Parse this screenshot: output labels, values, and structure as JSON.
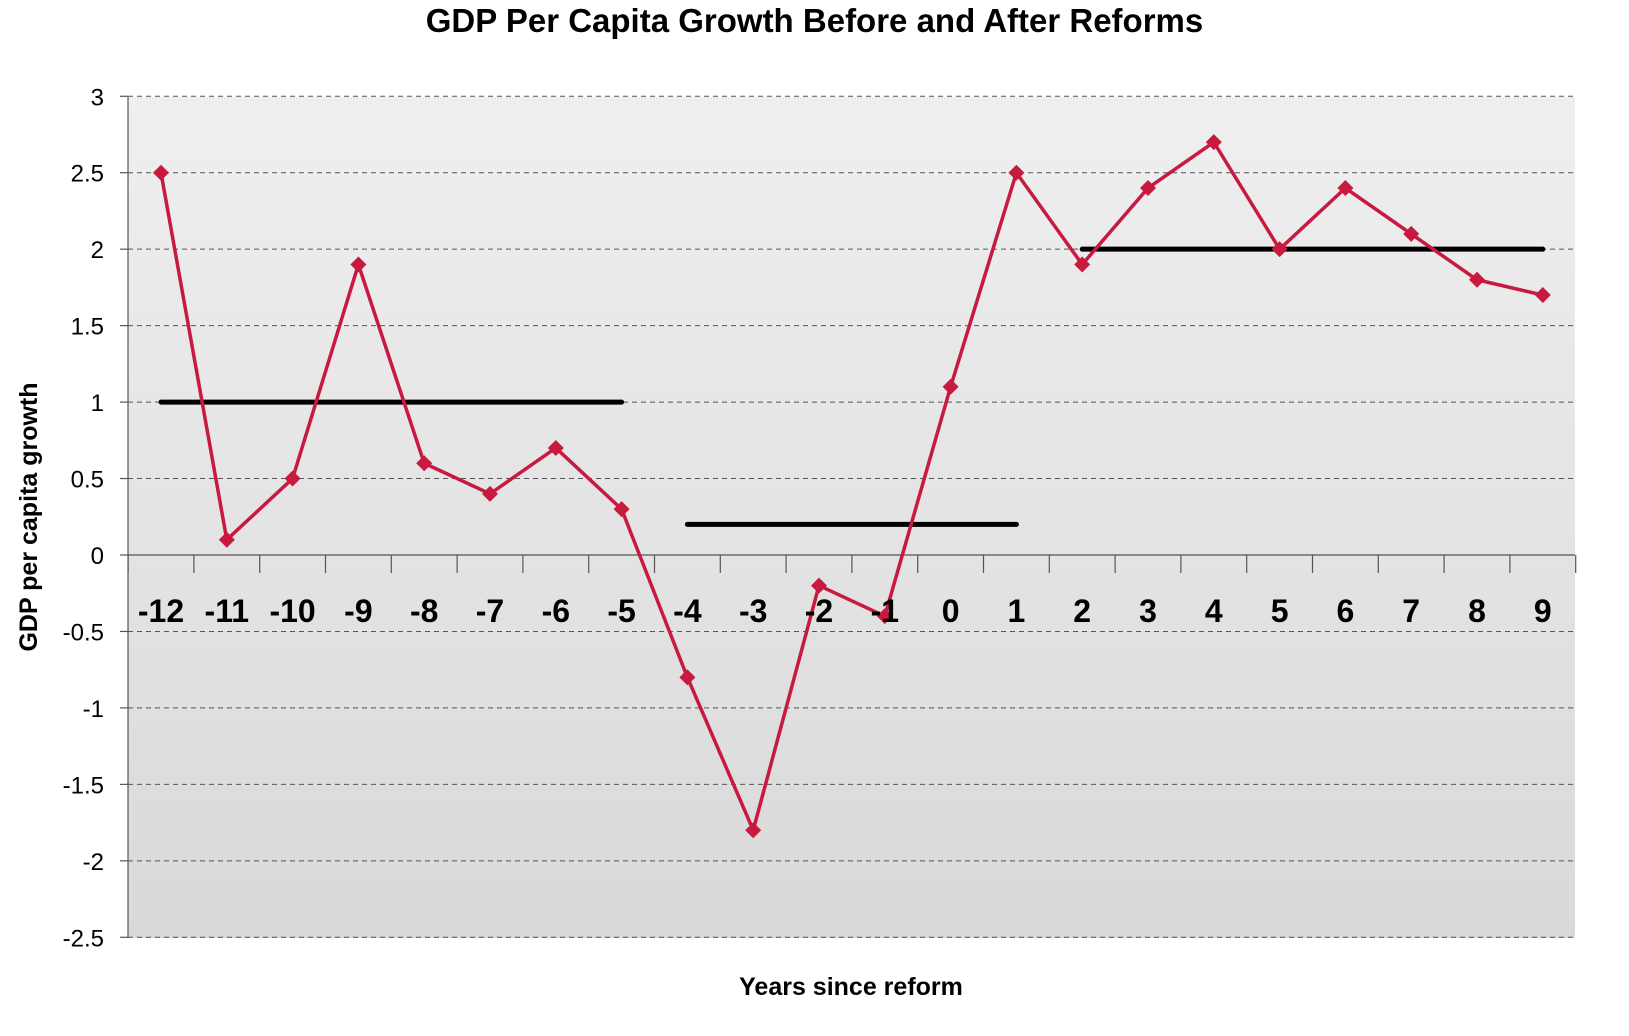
{
  "chart_data": {
    "type": "line",
    "title": "GDP Per Capita Growth Before and After Reforms",
    "xlabel": "Years since reform",
    "ylabel": "GDP per capita growth",
    "x": [
      -12,
      -11,
      -10,
      -9,
      -8,
      -7,
      -6,
      -5,
      -4,
      -3,
      -2,
      -1,
      0,
      1,
      2,
      3,
      4,
      5,
      6,
      7,
      8,
      9
    ],
    "series": [
      {
        "values": [
          2.5,
          0.1,
          0.5,
          1.9,
          0.6,
          0.4,
          0.7,
          0.3,
          -0.8,
          -1.8,
          -0.2,
          -0.4,
          1.1,
          2.5,
          1.9,
          2.4,
          2.7,
          2.0,
          2.4,
          2.1,
          1.8,
          1.7
        ],
        "color": "#c8193f"
      }
    ],
    "period_averages": [
      {
        "x_start": -12,
        "x_end": -5,
        "value": 1.0
      },
      {
        "x_start": -4,
        "x_end": 1,
        "value": 0.2
      },
      {
        "x_start": 2,
        "x_end": 9,
        "value": 2.0
      }
    ],
    "ylim": [
      -2.5,
      3
    ],
    "yticks": [
      "-2.5",
      "-2",
      "-1.5",
      "-1",
      "-0.5",
      "0",
      "0.5",
      "1",
      "1.5",
      "2",
      "2.5",
      "3"
    ],
    "xticks": [
      "-12",
      "-11",
      "-10",
      "-9",
      "-8",
      "-7",
      "-6",
      "-5",
      "-4",
      "-3",
      "-2",
      "-1",
      "0",
      "1",
      "2",
      "3",
      "4",
      "5",
      "6",
      "7",
      "8",
      "9"
    ],
    "grid": true,
    "legend": "none",
    "colors": {
      "series": "#c8193f",
      "average_line": "#000000",
      "plot_background": "#e4e4e4"
    }
  }
}
